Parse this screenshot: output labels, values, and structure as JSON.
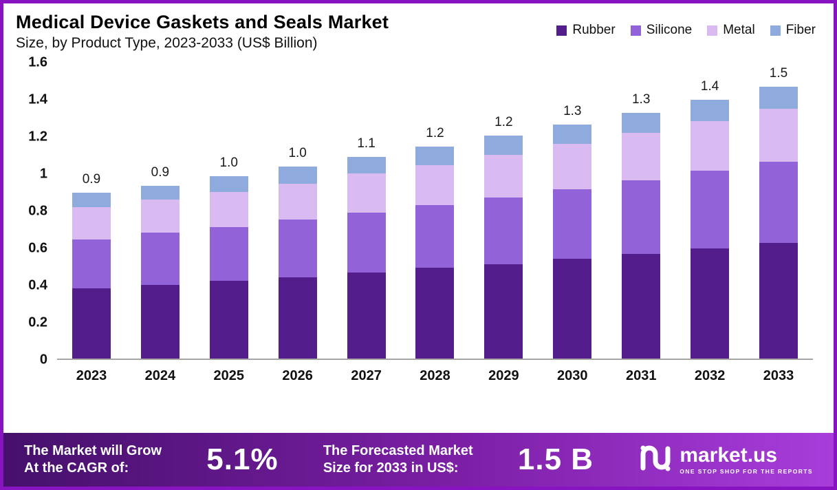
{
  "title": "Medical Device Gaskets and Seals Market",
  "subtitle": "Size, by Product Type, 2023-2033 (US$ Billion)",
  "legend": [
    {
      "label": "Rubber",
      "color": "#531d8c"
    },
    {
      "label": "Silicone",
      "color": "#9262d9"
    },
    {
      "label": "Metal",
      "color": "#d9bbf2"
    },
    {
      "label": "Fiber",
      "color": "#8faadc"
    }
  ],
  "chart_data": {
    "type": "bar",
    "stacked": true,
    "title": "Medical Device Gaskets and Seals Market Size, by Product Type, 2023-2033 (US$ Billion)",
    "categories": [
      "2023",
      "2024",
      "2025",
      "2026",
      "2027",
      "2028",
      "2029",
      "2030",
      "2031",
      "2032",
      "2033"
    ],
    "series": [
      {
        "name": "Rubber",
        "color": "#531d8c",
        "values": [
          0.38,
          0.4,
          0.42,
          0.44,
          0.465,
          0.49,
          0.51,
          0.54,
          0.565,
          0.595,
          0.625
        ]
      },
      {
        "name": "Silicone",
        "color": "#9262d9",
        "values": [
          0.265,
          0.28,
          0.29,
          0.31,
          0.325,
          0.34,
          0.36,
          0.375,
          0.4,
          0.42,
          0.44
        ]
      },
      {
        "name": "Metal",
        "color": "#d9bbf2",
        "values": [
          0.175,
          0.18,
          0.19,
          0.195,
          0.21,
          0.215,
          0.23,
          0.245,
          0.255,
          0.27,
          0.285
        ]
      },
      {
        "name": "Fiber",
        "color": "#8faadc",
        "values": [
          0.075,
          0.075,
          0.085,
          0.095,
          0.09,
          0.1,
          0.105,
          0.105,
          0.11,
          0.115,
          0.12
        ]
      }
    ],
    "totals_labels": [
      "0.9",
      "0.9",
      "1.0",
      "1.0",
      "1.1",
      "1.2",
      "1.2",
      "1.3",
      "1.3",
      "1.4",
      "1.5"
    ],
    "xlabel": "",
    "ylabel": "",
    "ylim": [
      0,
      1.6
    ],
    "yticks": [
      "0",
      "0.2",
      "0.4",
      "0.6",
      "0.8",
      "1",
      "1.2",
      "1.4",
      "1.6"
    ],
    "grid": false,
    "legend_position": "top-right"
  },
  "footer": {
    "cagr_label_lines": [
      "The Market will Grow",
      "At the CAGR of:"
    ],
    "cagr_value": "5.1%",
    "forecast_label_lines": [
      "The Forecasted Market",
      "Size for 2033 in US$:"
    ],
    "forecast_value": "1.5 B",
    "brand": "market.us",
    "brand_tagline": "ONE STOP SHOP FOR THE REPORTS"
  },
  "colors": {
    "frame_border": "#8713c1",
    "footer_gradient_start": "#45106b",
    "footer_gradient_end": "#a83ddb"
  }
}
